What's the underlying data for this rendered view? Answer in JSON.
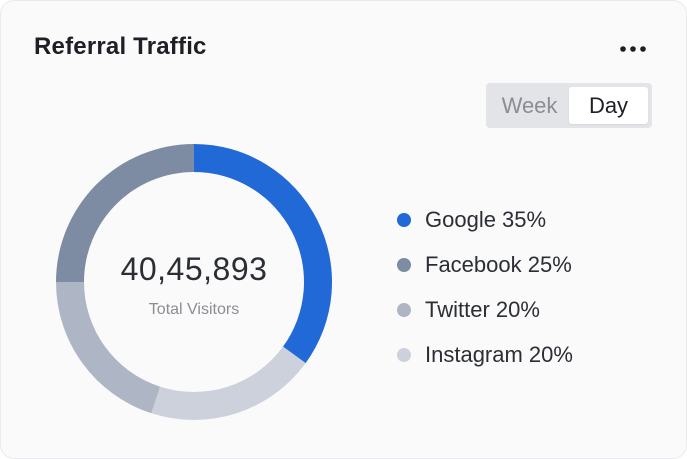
{
  "card": {
    "title": "Referral Traffic",
    "more_icon": "more-horizontal-icon"
  },
  "toggle": {
    "options": [
      "Week",
      "Day"
    ],
    "selected": "Day"
  },
  "summary": {
    "total_value": "40,45,893",
    "total_label": "Total Visitors"
  },
  "colors": {
    "Google": "#2269d8",
    "Facebook": "#7d8ba3",
    "Twitter": "#aeb6c6",
    "Instagram": "#ccd1dc",
    "track": "#e6e7eb"
  },
  "chart_data": {
    "type": "pie",
    "categories": [
      "Google",
      "Facebook",
      "Twitter",
      "Instagram"
    ],
    "values": [
      35,
      25,
      20,
      20
    ],
    "legend_labels": [
      "Google 35%",
      "Facebook 25%",
      "Twitter 20%",
      "Instagram 20%"
    ],
    "legend_position": "right",
    "center_text": "40,45,893",
    "center_subtext": "Total Visitors"
  }
}
